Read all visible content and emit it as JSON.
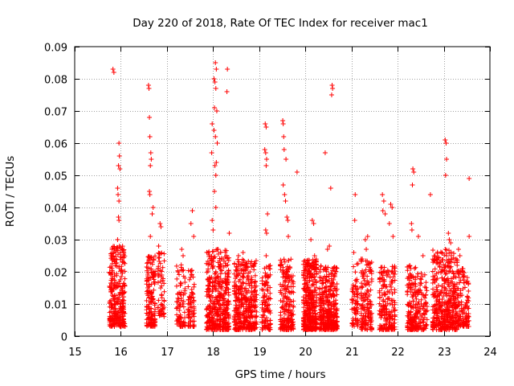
{
  "chart_data": {
    "type": "scatter",
    "title": "Day 220 of 2018, Rate Of TEC Index for receiver mac1",
    "xlabel": "GPS time / hours",
    "ylabel": "ROTI / TECUs",
    "xlim": [
      15,
      24
    ],
    "ylim": [
      0,
      0.09
    ],
    "x_ticks": [
      "15",
      "16",
      "17",
      "18",
      "19",
      "20",
      "21",
      "22",
      "23",
      "24"
    ],
    "y_ticks": [
      "0",
      "0.01",
      "0.02",
      "0.03",
      "0.04",
      "0.05",
      "0.06",
      "0.07",
      "0.08",
      "0.09"
    ],
    "grid": true,
    "marker": "+",
    "marker_color": "#ff0000",
    "clusters": [
      {
        "x_start": 15.75,
        "x_end": 16.1,
        "n": 320,
        "y_base": 0.003,
        "y_spread": 0.025,
        "tall_points": [
          [
            15.83,
            0.083
          ],
          [
            15.85,
            0.082
          ],
          [
            15.97,
            0.056
          ],
          [
            15.96,
            0.06
          ],
          [
            15.95,
            0.053
          ],
          [
            15.98,
            0.052
          ],
          [
            15.93,
            0.046
          ],
          [
            15.94,
            0.044
          ],
          [
            15.96,
            0.042
          ],
          [
            15.95,
            0.037
          ],
          [
            15.96,
            0.036
          ],
          [
            15.93,
            0.03
          ],
          [
            15.97,
            0.028
          ]
        ]
      },
      {
        "x_start": 16.55,
        "x_end": 16.75,
        "n": 160,
        "y_base": 0.003,
        "y_spread": 0.022,
        "tall_points": [
          [
            16.6,
            0.078
          ],
          [
            16.61,
            0.077
          ],
          [
            16.62,
            0.068
          ],
          [
            16.63,
            0.062
          ],
          [
            16.65,
            0.057
          ],
          [
            16.66,
            0.055
          ],
          [
            16.64,
            0.053
          ],
          [
            16.62,
            0.045
          ],
          [
            16.63,
            0.044
          ],
          [
            16.7,
            0.04
          ],
          [
            16.68,
            0.038
          ],
          [
            16.64,
            0.031
          ]
        ]
      },
      {
        "x_start": 16.8,
        "x_end": 16.95,
        "n": 60,
        "y_base": 0.006,
        "y_spread": 0.02,
        "tall_points": [
          [
            16.85,
            0.035
          ],
          [
            16.87,
            0.034
          ],
          [
            16.82,
            0.028
          ]
        ]
      },
      {
        "x_start": 17.2,
        "x_end": 17.4,
        "n": 80,
        "y_base": 0.003,
        "y_spread": 0.02,
        "tall_points": [
          [
            17.32,
            0.027
          ],
          [
            17.35,
            0.025
          ]
        ]
      },
      {
        "x_start": 17.45,
        "x_end": 17.6,
        "n": 70,
        "y_base": 0.003,
        "y_spread": 0.018,
        "tall_points": [
          [
            17.55,
            0.039
          ],
          [
            17.52,
            0.035
          ],
          [
            17.58,
            0.031
          ]
        ]
      },
      {
        "x_start": 17.85,
        "x_end": 18.35,
        "n": 420,
        "y_base": 0.002,
        "y_spread": 0.025,
        "tall_points": [
          [
            18.05,
            0.085
          ],
          [
            18.07,
            0.083
          ],
          [
            18.02,
            0.08
          ],
          [
            18.04,
            0.079
          ],
          [
            18.06,
            0.077
          ],
          [
            18.03,
            0.071
          ],
          [
            18.08,
            0.07
          ],
          [
            17.98,
            0.066
          ],
          [
            18.02,
            0.064
          ],
          [
            18.05,
            0.062
          ],
          [
            18.09,
            0.06
          ],
          [
            17.97,
            0.057
          ],
          [
            18.07,
            0.054
          ],
          [
            18.04,
            0.053
          ],
          [
            18.06,
            0.05
          ],
          [
            18.03,
            0.045
          ],
          [
            18.06,
            0.04
          ],
          [
            18.31,
            0.083
          ],
          [
            18.3,
            0.076
          ],
          [
            17.98,
            0.036
          ],
          [
            18.0,
            0.033
          ],
          [
            18.35,
            0.032
          ]
        ]
      },
      {
        "x_start": 18.45,
        "x_end": 18.95,
        "n": 380,
        "y_base": 0.002,
        "y_spread": 0.022,
        "tall_points": [
          [
            18.55,
            0.025
          ],
          [
            18.65,
            0.026
          ],
          [
            18.8,
            0.02
          ]
        ]
      },
      {
        "x_start": 19.05,
        "x_end": 19.25,
        "n": 110,
        "y_base": 0.002,
        "y_spread": 0.02,
        "tall_points": [
          [
            19.13,
            0.066
          ],
          [
            19.15,
            0.065
          ],
          [
            19.12,
            0.058
          ],
          [
            19.14,
            0.057
          ],
          [
            19.16,
            0.055
          ],
          [
            19.15,
            0.053
          ],
          [
            19.18,
            0.038
          ],
          [
            19.14,
            0.033
          ],
          [
            19.16,
            0.032
          ],
          [
            19.15,
            0.025
          ]
        ]
      },
      {
        "x_start": 19.45,
        "x_end": 19.75,
        "n": 200,
        "y_base": 0.002,
        "y_spread": 0.022,
        "tall_points": [
          [
            19.51,
            0.067
          ],
          [
            19.52,
            0.066
          ],
          [
            19.53,
            0.062
          ],
          [
            19.54,
            0.058
          ],
          [
            19.58,
            0.055
          ],
          [
            19.52,
            0.047
          ],
          [
            19.55,
            0.044
          ],
          [
            19.57,
            0.042
          ],
          [
            19.6,
            0.037
          ],
          [
            19.62,
            0.036
          ],
          [
            19.82,
            0.051
          ],
          [
            19.63,
            0.031
          ]
        ]
      },
      {
        "x_start": 19.95,
        "x_end": 20.25,
        "n": 380,
        "y_base": 0.002,
        "y_spread": 0.022,
        "tall_points": [
          [
            20.15,
            0.036
          ],
          [
            20.18,
            0.035
          ],
          [
            20.12,
            0.03
          ],
          [
            20.2,
            0.025
          ],
          [
            20.1,
            0.022
          ]
        ]
      },
      {
        "x_start": 20.3,
        "x_end": 20.7,
        "n": 350,
        "y_base": 0.002,
        "y_spread": 0.02,
        "tall_points": [
          [
            20.58,
            0.078
          ],
          [
            20.59,
            0.077
          ],
          [
            20.57,
            0.075
          ],
          [
            20.43,
            0.057
          ],
          [
            20.55,
            0.046
          ],
          [
            20.52,
            0.028
          ],
          [
            20.48,
            0.027
          ]
        ]
      },
      {
        "x_start": 21.0,
        "x_end": 21.15,
        "n": 70,
        "y_base": 0.003,
        "y_spread": 0.02,
        "tall_points": [
          [
            21.08,
            0.044
          ],
          [
            21.07,
            0.036
          ],
          [
            21.05,
            0.026
          ]
        ]
      },
      {
        "x_start": 21.2,
        "x_end": 21.45,
        "n": 150,
        "y_base": 0.002,
        "y_spread": 0.022,
        "tall_points": [
          [
            21.35,
            0.031
          ],
          [
            21.3,
            0.03
          ],
          [
            21.32,
            0.027
          ]
        ]
      },
      {
        "x_start": 21.6,
        "x_end": 21.95,
        "n": 200,
        "y_base": 0.002,
        "y_spread": 0.02,
        "tall_points": [
          [
            21.67,
            0.044
          ],
          [
            21.7,
            0.042
          ],
          [
            21.68,
            0.039
          ],
          [
            21.85,
            0.041
          ],
          [
            21.88,
            0.04
          ],
          [
            21.82,
            0.035
          ],
          [
            21.9,
            0.031
          ],
          [
            21.73,
            0.038
          ]
        ]
      },
      {
        "x_start": 22.2,
        "x_end": 22.4,
        "n": 140,
        "y_base": 0.002,
        "y_spread": 0.02,
        "tall_points": [
          [
            22.33,
            0.052
          ],
          [
            22.35,
            0.051
          ],
          [
            22.32,
            0.047
          ],
          [
            22.3,
            0.035
          ],
          [
            22.31,
            0.033
          ],
          [
            22.45,
            0.031
          ],
          [
            22.71,
            0.044
          ]
        ]
      },
      {
        "x_start": 22.4,
        "x_end": 22.65,
        "n": 100,
        "y_base": 0.002,
        "y_spread": 0.018,
        "tall_points": [
          [
            22.55,
            0.025
          ]
        ]
      },
      {
        "x_start": 22.75,
        "x_end": 23.3,
        "n": 450,
        "y_base": 0.002,
        "y_spread": 0.025,
        "tall_points": [
          [
            23.03,
            0.061
          ],
          [
            23.05,
            0.06
          ],
          [
            23.06,
            0.055
          ],
          [
            23.04,
            0.05
          ],
          [
            23.1,
            0.032
          ],
          [
            23.12,
            0.03
          ],
          [
            23.15,
            0.029
          ],
          [
            23.55,
            0.049
          ],
          [
            23.55,
            0.031
          ]
        ]
      },
      {
        "x_start": 23.3,
        "x_end": 23.55,
        "n": 120,
        "y_base": 0.003,
        "y_spread": 0.018,
        "tall_points": [
          [
            23.35,
            0.025
          ],
          [
            23.4,
            0.021
          ],
          [
            23.32,
            0.027
          ]
        ]
      }
    ]
  }
}
